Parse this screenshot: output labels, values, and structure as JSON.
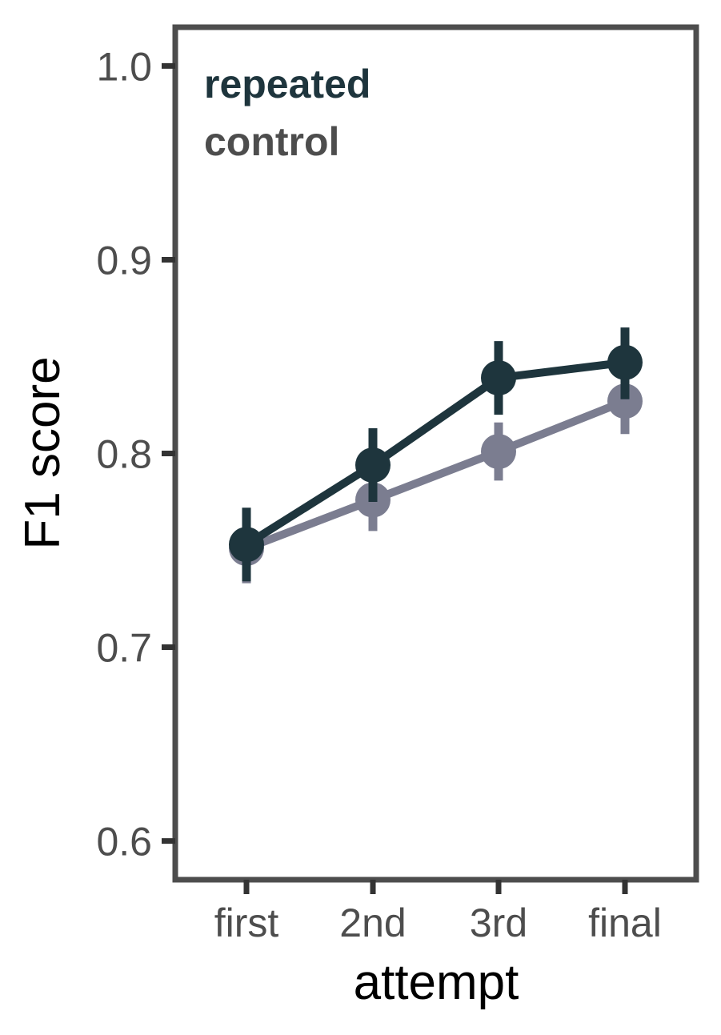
{
  "chart_data": {
    "type": "line",
    "xlabel": "attempt",
    "ylabel": "F1 score",
    "categories": [
      "first",
      "2nd",
      "3rd",
      "final"
    ],
    "ylim": [
      0.58,
      1.02
    ],
    "yticks": [
      0.6,
      0.7,
      0.8,
      0.9,
      1.0
    ],
    "ytick_labels": [
      "0.6",
      "0.7",
      "0.8",
      "0.9",
      "1.0"
    ],
    "grid": false,
    "legend": "top-left",
    "series": [
      {
        "name": "control",
        "color": "#7b7d90",
        "values": [
          0.751,
          0.776,
          0.801,
          0.827
        ],
        "error_low": [
          0.733,
          0.76,
          0.786,
          0.81
        ],
        "error_high": [
          0.769,
          0.792,
          0.816,
          0.844
        ]
      },
      {
        "name": "repeated",
        "color": "#1e353d",
        "values": [
          0.753,
          0.794,
          0.839,
          0.847
        ],
        "error_low": [
          0.734,
          0.775,
          0.82,
          0.828
        ],
        "error_high": [
          0.772,
          0.813,
          0.858,
          0.865
        ]
      }
    ]
  }
}
